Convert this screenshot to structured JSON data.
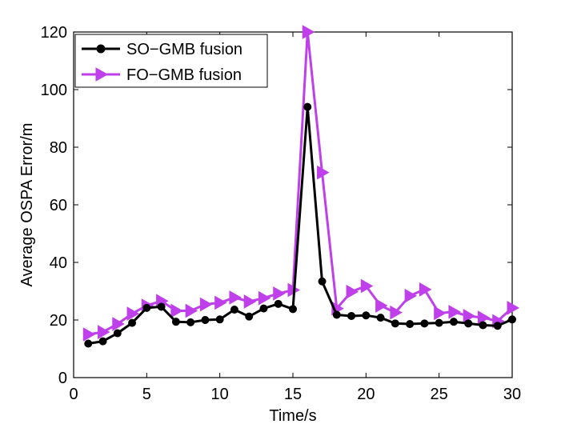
{
  "chart_data": {
    "type": "line",
    "title": "",
    "xlabel": "Time/s",
    "ylabel": "Average OSPA Error/m",
    "xlim": [
      0,
      30
    ],
    "ylim": [
      0,
      120
    ],
    "xticks": [
      0,
      5,
      10,
      15,
      20,
      25,
      30
    ],
    "yticks": [
      0,
      20,
      40,
      60,
      80,
      100,
      120
    ],
    "grid": false,
    "legend_position": "top-left",
    "x": [
      1,
      2,
      3,
      4,
      5,
      6,
      7,
      8,
      9,
      10,
      11,
      12,
      13,
      14,
      15,
      16,
      17,
      18,
      19,
      20,
      21,
      22,
      23,
      24,
      25,
      26,
      27,
      28,
      29,
      30
    ],
    "series": [
      {
        "name": "SO−GMB fusion",
        "color": "#000000",
        "marker": "circle",
        "values": [
          11.8,
          12.6,
          15.4,
          19.0,
          24.2,
          24.6,
          19.4,
          19.2,
          20.0,
          20.2,
          23.6,
          21.2,
          24.0,
          25.6,
          23.8,
          94.0,
          33.4,
          21.8,
          21.4,
          21.6,
          20.8,
          18.8,
          18.6,
          18.8,
          19.0,
          19.4,
          18.8,
          18.2,
          18.0,
          20.2
        ]
      },
      {
        "name": "FO−GMB fusion",
        "color": "#bf40ea",
        "marker": "triangle-right",
        "values": [
          15.0,
          15.8,
          18.6,
          22.2,
          25.0,
          26.6,
          23.2,
          23.2,
          25.4,
          26.0,
          27.8,
          26.4,
          27.6,
          29.2,
          30.4,
          120.0,
          71.2,
          24.0,
          29.8,
          31.8,
          25.0,
          22.6,
          28.4,
          30.6,
          22.4,
          22.8,
          21.4,
          20.8,
          19.6,
          24.2
        ]
      }
    ]
  }
}
